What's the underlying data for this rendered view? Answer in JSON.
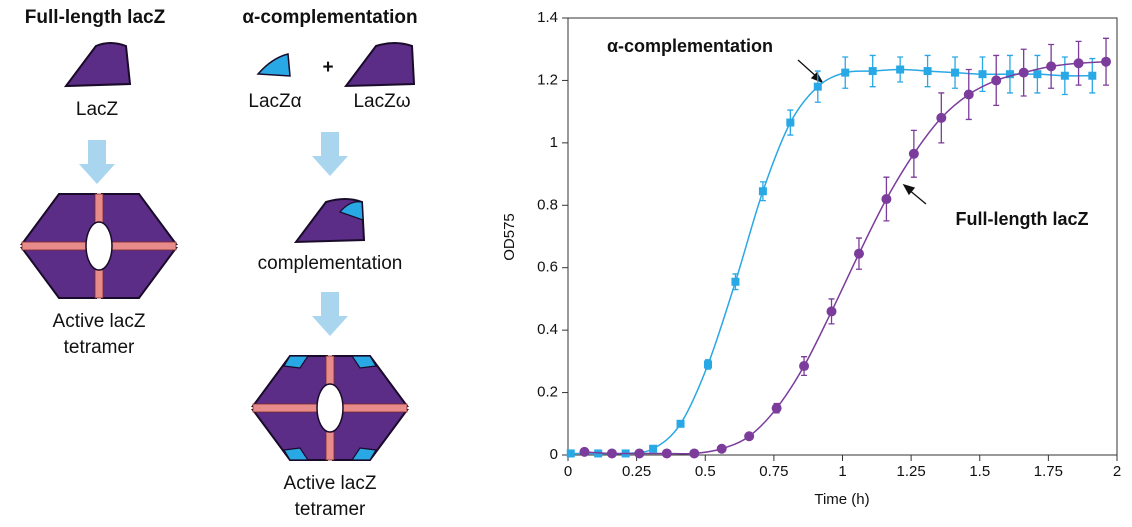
{
  "diagram": {
    "left": {
      "title": "Full-length lacZ",
      "monomer": "LacZ",
      "product": [
        "Active lacZ",
        "tetramer"
      ]
    },
    "right": {
      "title": "α-complementation",
      "alpha": "LacZα",
      "plus": "+",
      "omega": "LacZω",
      "middle": "complementation",
      "product": [
        "Active lacZ",
        "tetramer"
      ]
    }
  },
  "chart_data": {
    "type": "line",
    "xlabel": "Time (h)",
    "ylabel": "OD575",
    "xlim": [
      0,
      2
    ],
    "xticks": [
      0,
      0.25,
      0.5,
      0.75,
      1,
      1.25,
      1.5,
      1.75,
      2
    ],
    "ylim": [
      0,
      1.4
    ],
    "yticks": [
      0,
      0.2,
      0.4,
      0.6,
      0.8,
      1,
      1.2,
      1.4
    ],
    "annotations": [
      "α-complementation",
      "Full-length lacZ"
    ],
    "series": [
      {
        "name": "α-complementation",
        "color": "#29a8e6",
        "x": [
          0.01,
          0.11,
          0.21,
          0.31,
          0.41,
          0.51,
          0.61,
          0.71,
          0.81,
          0.91,
          1.01,
          1.11,
          1.21,
          1.31,
          1.41,
          1.51,
          1.61,
          1.71,
          1.81,
          1.91
        ],
        "values": [
          0.005,
          0.005,
          0.005,
          0.02,
          0.1,
          0.29,
          0.555,
          0.845,
          1.065,
          1.18,
          1.225,
          1.23,
          1.235,
          1.23,
          1.225,
          1.22,
          1.22,
          1.22,
          1.215,
          1.215
        ],
        "errors": [
          0.01,
          0.01,
          0.01,
          0.01,
          0.01,
          0.015,
          0.025,
          0.03,
          0.04,
          0.05,
          0.05,
          0.05,
          0.04,
          0.05,
          0.05,
          0.055,
          0.06,
          0.06,
          0.06,
          0.055
        ]
      },
      {
        "name": "Full-length lacZ",
        "color": "#7b3c9c",
        "x": [
          0.06,
          0.16,
          0.26,
          0.36,
          0.46,
          0.56,
          0.66,
          0.76,
          0.86,
          0.96,
          1.06,
          1.16,
          1.26,
          1.36,
          1.46,
          1.56,
          1.66,
          1.76,
          1.86,
          1.96
        ],
        "values": [
          0.01,
          0.005,
          0.005,
          0.005,
          0.005,
          0.02,
          0.06,
          0.15,
          0.285,
          0.46,
          0.645,
          0.82,
          0.965,
          1.08,
          1.155,
          1.2,
          1.225,
          1.245,
          1.255,
          1.26
        ],
        "errors": [
          0.01,
          0.01,
          0.01,
          0.01,
          0.01,
          0.01,
          0.01,
          0.015,
          0.03,
          0.04,
          0.05,
          0.07,
          0.075,
          0.08,
          0.08,
          0.08,
          0.075,
          0.07,
          0.07,
          0.075
        ]
      }
    ]
  }
}
